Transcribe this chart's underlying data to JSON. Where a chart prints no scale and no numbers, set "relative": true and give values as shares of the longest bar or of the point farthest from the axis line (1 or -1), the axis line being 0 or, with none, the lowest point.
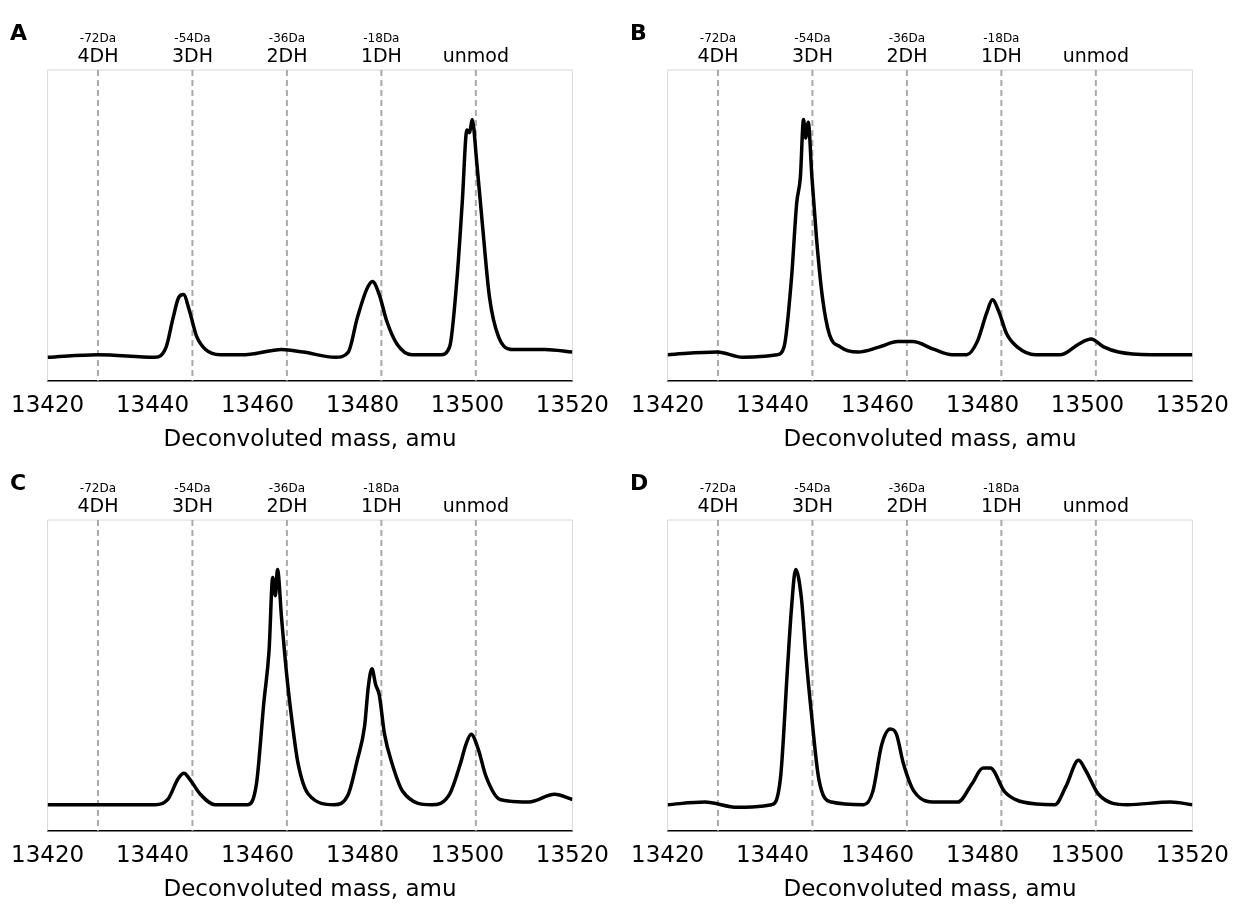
{
  "chart_data": [
    {
      "type": "line",
      "title": "A",
      "xlabel": "Deconvoluted mass, amu",
      "relative": true,
      "marker": "none",
      "xlim": [
        13420,
        13520
      ],
      "xticks": [
        13420,
        13440,
        13460,
        13480,
        13500,
        13520
      ],
      "ref_lines": [
        {
          "axis": "x",
          "value": 13429.6,
          "label": "-72Da\n4DH",
          "color": "#aaaaaa",
          "line_style": "dashed"
        },
        {
          "axis": "x",
          "value": 13447.6,
          "label": "-54Da\n3DH",
          "color": "#aaaaaa",
          "line_style": "dashed"
        },
        {
          "axis": "x",
          "value": 13465.6,
          "label": "-36Da\n2DH",
          "color": "#aaaaaa",
          "line_style": "dashed"
        },
        {
          "axis": "x",
          "value": 13483.6,
          "label": "-18Da\n1DH",
          "color": "#aaaaaa",
          "line_style": "dashed"
        },
        {
          "axis": "x",
          "value": 13501.6,
          "label": "unmod",
          "color": "#aaaaaa",
          "line_style": "dashed"
        }
      ],
      "series": [
        {
          "color": "#000000",
          "x": [
            13420,
            13429.6,
            13440.5,
            13442.6,
            13443.9,
            13445.0,
            13445.9,
            13447.0,
            13448.4,
            13450.1,
            13452.9,
            13457.7,
            13464.6,
            13468.7,
            13474.9,
            13477.3,
            13479.0,
            13480.8,
            13481.9,
            13483.2,
            13484.6,
            13486.6,
            13489.4,
            13494.9,
            13496.6,
            13498.0,
            13499.0,
            13499.9,
            13500.4,
            13500.9,
            13501.8,
            13502.8,
            13504.2,
            13505.9,
            13508.6,
            13514.8,
            13520
          ],
          "values": [
            0.09,
            0.1,
            0.09,
            0.13,
            0.24,
            0.32,
            0.33,
            0.27,
            0.17,
            0.12,
            0.1,
            0.1,
            0.12,
            0.11,
            0.09,
            0.11,
            0.24,
            0.35,
            0.38,
            0.33,
            0.23,
            0.14,
            0.1,
            0.1,
            0.13,
            0.39,
            0.68,
            0.96,
            0.95,
            1.0,
            0.83,
            0.61,
            0.32,
            0.17,
            0.12,
            0.12,
            0.11
          ]
        }
      ]
    },
    {
      "type": "line",
      "title": "B",
      "xlabel": "Deconvoluted mass, amu",
      "relative": true,
      "marker": "none",
      "xlim": [
        13420,
        13520
      ],
      "xticks": [
        13420,
        13440,
        13460,
        13480,
        13500,
        13520
      ],
      "ref_lines": [
        {
          "axis": "x",
          "value": 13429.6,
          "label": "-72Da\n4DH",
          "color": "#aaaaaa",
          "line_style": "dashed"
        },
        {
          "axis": "x",
          "value": 13447.6,
          "label": "-54Da\n3DH",
          "color": "#aaaaaa",
          "line_style": "dashed"
        },
        {
          "axis": "x",
          "value": 13465.6,
          "label": "-36Da\n2DH",
          "color": "#aaaaaa",
          "line_style": "dashed"
        },
        {
          "axis": "x",
          "value": 13483.6,
          "label": "-18Da\n1DH",
          "color": "#aaaaaa",
          "line_style": "dashed"
        },
        {
          "axis": "x",
          "value": 13501.6,
          "label": "unmod",
          "color": "#aaaaaa",
          "line_style": "dashed"
        }
      ],
      "series": [
        {
          "color": "#000000",
          "x": [
            13420,
            13429.5,
            13434.3,
            13440.9,
            13442.2,
            13443.6,
            13444.6,
            13445.3,
            13445.9,
            13446.3,
            13446.8,
            13447.5,
            13448.4,
            13449.5,
            13450.8,
            13452.9,
            13456.3,
            13460.4,
            13463.9,
            13466.7,
            13470.8,
            13474.2,
            13477.0,
            13479.0,
            13480.8,
            13481.9,
            13483.2,
            13484.6,
            13486.6,
            13490.1,
            13494.9,
            13498.3,
            13500.7,
            13503.1,
            13505.9,
            13512.1,
            13520
          ],
          "values": [
            0.1,
            0.11,
            0.09,
            0.1,
            0.13,
            0.39,
            0.68,
            0.78,
            1.0,
            0.93,
            0.99,
            0.78,
            0.54,
            0.32,
            0.18,
            0.13,
            0.11,
            0.13,
            0.15,
            0.15,
            0.12,
            0.1,
            0.1,
            0.15,
            0.26,
            0.31,
            0.26,
            0.18,
            0.13,
            0.1,
            0.1,
            0.14,
            0.16,
            0.13,
            0.11,
            0.1,
            0.1
          ]
        }
      ]
    },
    {
      "type": "line",
      "title": "C",
      "xlabel": "Deconvoluted mass, amu",
      "relative": true,
      "marker": "none",
      "xlim": [
        13420,
        13520
      ],
      "xticks": [
        13420,
        13440,
        13460,
        13480,
        13500,
        13520
      ],
      "ref_lines": [
        {
          "axis": "x",
          "value": 13429.6,
          "label": "-72Da\n4DH",
          "color": "#aaaaaa",
          "line_style": "dashed"
        },
        {
          "axis": "x",
          "value": 13447.6,
          "label": "-54Da\n3DH",
          "color": "#aaaaaa",
          "line_style": "dashed"
        },
        {
          "axis": "x",
          "value": 13465.6,
          "label": "-36Da\n2DH",
          "color": "#aaaaaa",
          "line_style": "dashed"
        },
        {
          "axis": "x",
          "value": 13483.6,
          "label": "-18Da\n1DH",
          "color": "#aaaaaa",
          "line_style": "dashed"
        },
        {
          "axis": "x",
          "value": 13501.6,
          "label": "unmod",
          "color": "#aaaaaa",
          "line_style": "dashed"
        }
      ],
      "series": [
        {
          "color": "#000000",
          "x": [
            13420,
            13430.5,
            13434.0,
            13440.5,
            13442.9,
            13444.9,
            13446.0,
            13447.0,
            13449.1,
            13451.9,
            13458.1,
            13459.8,
            13461.2,
            13462.2,
            13462.9,
            13463.4,
            13463.8,
            13464.6,
            13465.6,
            13466.7,
            13467.7,
            13469.7,
            13474.6,
            13477.3,
            13479.0,
            13480.4,
            13481.1,
            13481.8,
            13482.5,
            13483.2,
            13484.2,
            13485.6,
            13487.7,
            13493.2,
            13496.6,
            13498.7,
            13499.7,
            13500.7,
            13502.1,
            13503.5,
            13506.2,
            13511.7,
            13516.6,
            13520
          ],
          "values": [
            0.1,
            0.1,
            0.1,
            0.1,
            0.12,
            0.2,
            0.22,
            0.2,
            0.14,
            0.1,
            0.1,
            0.18,
            0.49,
            0.69,
            0.97,
            0.9,
            1.0,
            0.81,
            0.59,
            0.4,
            0.26,
            0.14,
            0.1,
            0.14,
            0.27,
            0.4,
            0.55,
            0.62,
            0.56,
            0.52,
            0.37,
            0.26,
            0.15,
            0.1,
            0.14,
            0.26,
            0.33,
            0.37,
            0.31,
            0.21,
            0.12,
            0.11,
            0.14,
            0.12
          ]
        }
      ]
    },
    {
      "type": "line",
      "title": "D",
      "xlabel": "Deconvoluted mass, amu",
      "relative": true,
      "marker": "none",
      "xlim": [
        13420,
        13520
      ],
      "xticks": [
        13420,
        13440,
        13460,
        13480,
        13500,
        13520
      ],
      "ref_lines": [
        {
          "axis": "x",
          "value": 13429.6,
          "label": "-72Da\n4DH",
          "color": "#aaaaaa",
          "line_style": "dashed"
        },
        {
          "axis": "x",
          "value": 13447.6,
          "label": "-54Da\n3DH",
          "color": "#aaaaaa",
          "line_style": "dashed"
        },
        {
          "axis": "x",
          "value": 13465.6,
          "label": "-36Da\n2DH",
          "color": "#aaaaaa",
          "line_style": "dashed"
        },
        {
          "axis": "x",
          "value": 13483.6,
          "label": "-18Da\n1DH",
          "color": "#aaaaaa",
          "line_style": "dashed"
        },
        {
          "axis": "x",
          "value": 13501.6,
          "label": "unmod",
          "color": "#aaaaaa",
          "line_style": "dashed"
        }
      ],
      "series": [
        {
          "color": "#000000",
          "x": [
            13420,
            13427.1,
            13433.3,
            13439.8,
            13441.5,
            13442.9,
            13443.6,
            13444.4,
            13445.5,
            13446.4,
            13447.4,
            13448.8,
            13451.2,
            13457.4,
            13459.1,
            13460.8,
            13462.4,
            13463.6,
            13464.9,
            13467.0,
            13471.1,
            13475.3,
            13478.0,
            13480.1,
            13481.5,
            13484.2,
            13487.7,
            13493.8,
            13495.9,
            13498.3,
            13499.7,
            13502.1,
            13507.6,
            13515.9,
            13520
          ],
          "values": [
            0.1,
            0.11,
            0.09,
            0.1,
            0.2,
            0.64,
            0.85,
            1.0,
            0.89,
            0.66,
            0.45,
            0.2,
            0.11,
            0.1,
            0.15,
            0.33,
            0.39,
            0.37,
            0.26,
            0.15,
            0.11,
            0.11,
            0.18,
            0.24,
            0.24,
            0.15,
            0.11,
            0.1,
            0.17,
            0.27,
            0.23,
            0.14,
            0.1,
            0.11,
            0.1
          ]
        }
      ]
    }
  ]
}
